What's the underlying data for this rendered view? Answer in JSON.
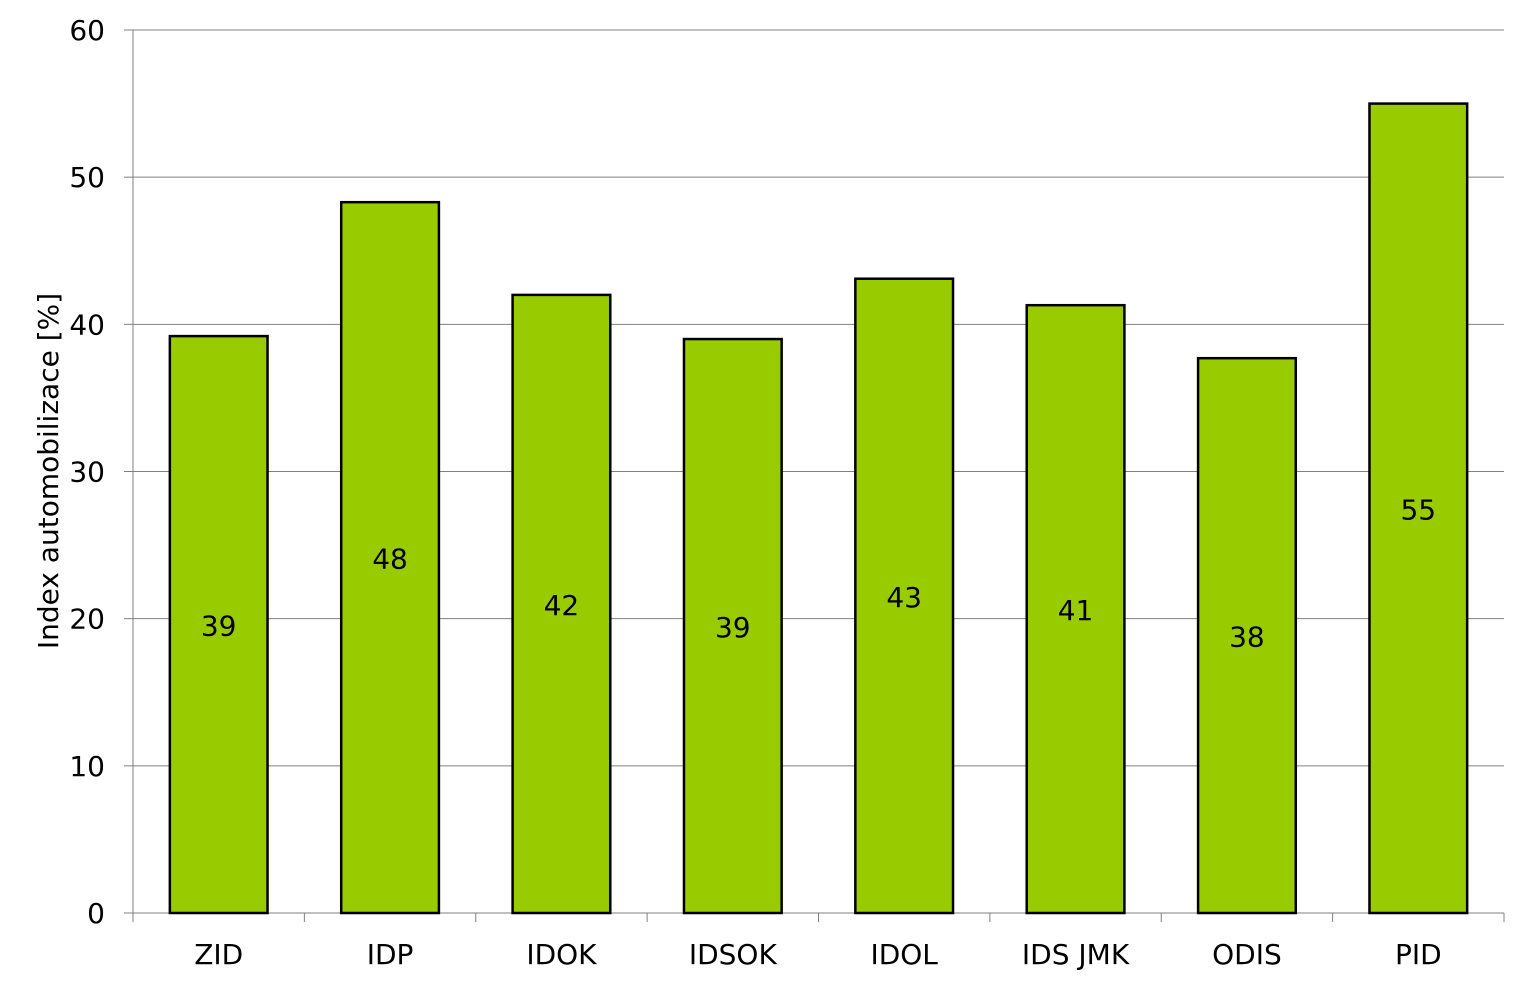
{
  "chart_data": {
    "type": "bar",
    "title": "",
    "xlabel": "",
    "ylabel": "Index automobilizace [%]",
    "categories": [
      "ZID",
      "IDP",
      "IDOK",
      "IDSOK",
      "IDOL",
      "IDS JMK",
      "ODIS",
      "PID"
    ],
    "values": [
      39.2,
      48.3,
      42.0,
      39.0,
      43.1,
      41.3,
      37.7,
      55.0
    ],
    "data_labels": [
      "39",
      "48",
      "42",
      "39",
      "43",
      "41",
      "38",
      "55"
    ],
    "ylim": [
      0,
      60
    ],
    "yticks": [
      0,
      10,
      20,
      30,
      40,
      50,
      60
    ],
    "ytick_labels": [
      "0",
      "10",
      "20",
      "30",
      "40",
      "50",
      "60"
    ],
    "grid": true,
    "legend": "none",
    "colors": {
      "bar_fill": "#99cc00",
      "bar_stroke": "#000000",
      "grid": "#808080",
      "axis": "#808080"
    }
  }
}
